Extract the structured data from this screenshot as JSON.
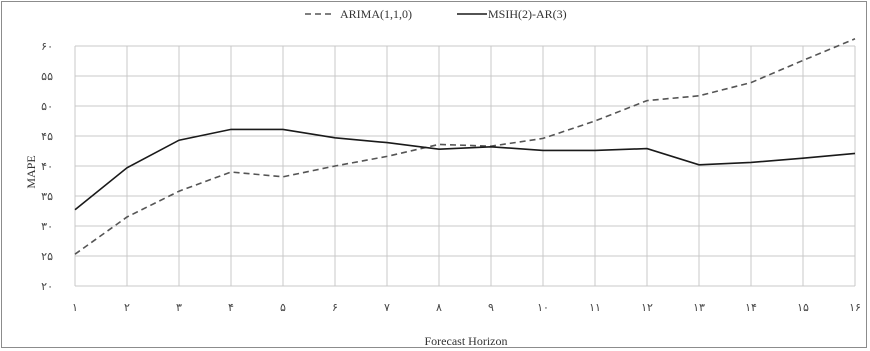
{
  "chart_data": {
    "type": "line",
    "title": "",
    "xlabel": "Forecast Horizon",
    "ylabel": "MAPE",
    "x_tick_labels": [
      "۱",
      "۲",
      "۳",
      "۴",
      "۵",
      "۶",
      "۷",
      "۸",
      "۹",
      "۱۰",
      "۱۱",
      "۱۲",
      "۱۳",
      "۱۴",
      "۱۵",
      "۱۶"
    ],
    "x": [
      1,
      2,
      3,
      4,
      5,
      6,
      7,
      8,
      9,
      10,
      11,
      12,
      13,
      14,
      15,
      16
    ],
    "y_tick_labels": [
      "۲۰",
      "۲۵",
      "۳۰",
      "۳۵",
      "۴۰",
      "۴۵",
      "۵۰",
      "۵۵",
      "۶۰"
    ],
    "y_ticks": [
      20,
      25,
      30,
      35,
      40,
      45,
      50,
      55,
      60
    ],
    "ylim": [
      20,
      60
    ],
    "xlim": [
      1,
      16
    ],
    "grid": true,
    "legend_position": "top-center",
    "series": [
      {
        "name": "ARIMA(1,1,0)",
        "style": "dashed",
        "color": "#555555",
        "values": [
          25.3,
          31.5,
          35.8,
          39.0,
          38.2,
          40.0,
          41.6,
          43.6,
          43.3,
          44.6,
          47.5,
          50.9,
          51.7,
          53.9,
          57.6,
          61.2
        ]
      },
      {
        "name": "MSIH(2)-AR(3)",
        "style": "solid",
        "color": "#1a1a1a",
        "values": [
          32.7,
          39.7,
          44.3,
          46.1,
          46.1,
          44.7,
          43.9,
          42.8,
          43.2,
          42.6,
          42.6,
          42.9,
          40.2,
          40.6,
          41.3,
          42.1
        ]
      }
    ]
  }
}
